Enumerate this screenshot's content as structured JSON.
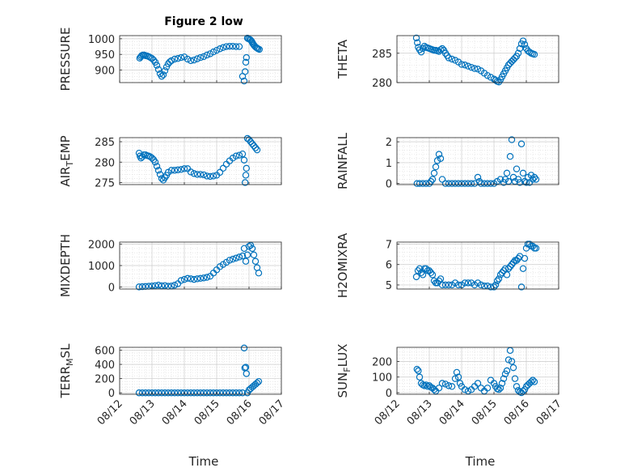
{
  "figure_title": "Figure 2 low",
  "chart_data": [
    {
      "type": "scatter",
      "ylabel": "PRESSURE",
      "ylim": [
        860,
        1010
      ],
      "yticks": [
        900,
        950,
        1000
      ],
      "xlim": [
        0,
        5
      ],
      "xticks": [
        0,
        1,
        2,
        3,
        4,
        5
      ],
      "xticklabels": [
        "08/12",
        "08/13",
        "08/14",
        "08/15",
        "08/16",
        "08/17"
      ],
      "show_xticklabels": false,
      "grid": true,
      "color": "#0072BD",
      "x": [
        0.62,
        0.65,
        0.68,
        0.72,
        0.76,
        0.8,
        0.85,
        0.9,
        0.95,
        1.0,
        1.05,
        1.1,
        1.15,
        1.2,
        1.25,
        1.3,
        1.35,
        1.4,
        1.45,
        1.5,
        1.55,
        1.6,
        1.7,
        1.8,
        1.9,
        2.0,
        2.1,
        2.2,
        2.3,
        2.4,
        2.5,
        2.6,
        2.7,
        2.8,
        2.9,
        3.0,
        3.1,
        3.2,
        3.3,
        3.4,
        3.5,
        3.6,
        3.7,
        3.8,
        3.85,
        3.88,
        3.9,
        3.92,
        3.95,
        3.98,
        4.02,
        4.05,
        4.08,
        4.1,
        4.12,
        4.15,
        4.18,
        4.22,
        4.25,
        4.28,
        4.32
      ],
      "y": [
        938,
        942,
        946,
        948,
        948,
        946,
        945,
        943,
        940,
        937,
        932,
        925,
        915,
        902,
        888,
        880,
        885,
        898,
        910,
        920,
        926,
        930,
        935,
        937,
        940,
        942,
        935,
        930,
        932,
        936,
        940,
        943,
        948,
        952,
        958,
        963,
        968,
        972,
        975,
        976,
        976,
        975,
        975,
        880,
        865,
        895,
        925,
        940,
        1002,
        1000,
        998,
        996,
        992,
        988,
        984,
        980,
        976,
        972,
        970,
        968,
        966
      ]
    },
    {
      "type": "scatter",
      "ylabel": "THETA",
      "ylim": [
        280,
        288
      ],
      "yticks": [
        280,
        285
      ],
      "xlim": [
        0,
        5
      ],
      "xticks": [
        0,
        1,
        2,
        3,
        4,
        5
      ],
      "xticklabels": [
        "08/12",
        "08/13",
        "08/14",
        "08/15",
        "08/16",
        "08/17"
      ],
      "show_xticklabels": false,
      "grid": true,
      "color": "#0072BD",
      "x": [
        0.6,
        0.63,
        0.66,
        0.7,
        0.75,
        0.8,
        0.85,
        0.9,
        0.95,
        1.0,
        1.05,
        1.1,
        1.15,
        1.2,
        1.25,
        1.3,
        1.35,
        1.4,
        1.45,
        1.5,
        1.55,
        1.6,
        1.7,
        1.8,
        1.9,
        2.0,
        2.1,
        2.2,
        2.3,
        2.4,
        2.5,
        2.6,
        2.7,
        2.8,
        2.9,
        3.0,
        3.05,
        3.1,
        3.15,
        3.2,
        3.25,
        3.3,
        3.35,
        3.4,
        3.45,
        3.5,
        3.55,
        3.6,
        3.65,
        3.7,
        3.75,
        3.8,
        3.85,
        3.9,
        3.95,
        4.0,
        4.05,
        4.1,
        4.15,
        4.2,
        4.25
      ],
      "y": [
        287.6,
        286.8,
        286,
        285.6,
        285.2,
        285.8,
        286.2,
        286,
        285.9,
        285.8,
        285.7,
        285.6,
        285.5,
        285.5,
        285.4,
        285.3,
        285.6,
        285.8,
        285.5,
        285,
        284.6,
        284.2,
        284,
        283.8,
        283.5,
        283.1,
        283,
        282.8,
        282.6,
        282.4,
        282.3,
        282,
        281.6,
        281.2,
        280.9,
        280.6,
        280.4,
        280.2,
        280.1,
        280.5,
        281,
        281.5,
        282,
        282.5,
        283,
        283.3,
        283.6,
        283.9,
        284.2,
        284.5,
        285,
        285.8,
        286.6,
        287.1,
        286.5,
        285.8,
        285.4,
        285.2,
        285,
        284.9,
        284.8
      ]
    },
    {
      "type": "scatter",
      "ylabel": "AIR_T_EMP",
      "ylabel_main": "AIR",
      "ylabel_sub": "T",
      "ylabel_rest": "EMP",
      "ylim": [
        274.5,
        286
      ],
      "yticks": [
        275,
        280,
        285
      ],
      "xlim": [
        0,
        5
      ],
      "xticks": [
        0,
        1,
        2,
        3,
        4,
        5
      ],
      "xticklabels": [
        "08/12",
        "08/13",
        "08/14",
        "08/15",
        "08/16",
        "08/17"
      ],
      "show_xticklabels": false,
      "grid": true,
      "color": "#0072BD",
      "x": [
        0.6,
        0.63,
        0.66,
        0.7,
        0.75,
        0.8,
        0.85,
        0.9,
        0.95,
        1.0,
        1.05,
        1.1,
        1.15,
        1.2,
        1.25,
        1.3,
        1.35,
        1.4,
        1.45,
        1.5,
        1.6,
        1.7,
        1.8,
        1.9,
        2.0,
        2.1,
        2.2,
        2.3,
        2.4,
        2.5,
        2.6,
        2.7,
        2.8,
        2.9,
        3.0,
        3.1,
        3.2,
        3.3,
        3.4,
        3.5,
        3.6,
        3.7,
        3.8,
        3.85,
        3.88,
        3.9,
        3.92,
        3.95,
        4.0,
        4.05,
        4.1,
        4.15,
        4.2,
        4.25
      ],
      "y": [
        282.2,
        281.5,
        281,
        281.3,
        281.8,
        281.8,
        281.6,
        281.5,
        281.3,
        281,
        280.6,
        280,
        279,
        278,
        277,
        276,
        275.6,
        276.2,
        276.8,
        277.5,
        278,
        278,
        278.1,
        278.2,
        278.4,
        278.4,
        277.6,
        277.2,
        277,
        277,
        276.9,
        276.6,
        276.5,
        276.6,
        276.8,
        277.5,
        278.5,
        279.5,
        280.3,
        281,
        281.5,
        281.7,
        282,
        280.5,
        275,
        276.8,
        278.5,
        285.8,
        285.5,
        285,
        284.5,
        284,
        283.5,
        283
      ]
    },
    {
      "type": "scatter",
      "ylabel": "RAINFALL",
      "ylim": [
        -0.05,
        2.2
      ],
      "yticks": [
        0,
        1,
        2
      ],
      "xlim": [
        0,
        5
      ],
      "xticks": [
        0,
        1,
        2,
        3,
        4,
        5
      ],
      "xticklabels": [
        "08/12",
        "08/13",
        "08/14",
        "08/15",
        "08/16",
        "08/17"
      ],
      "show_xticklabels": false,
      "grid": true,
      "color": "#0072BD",
      "x": [
        0.62,
        0.7,
        0.8,
        0.9,
        1.0,
        1.05,
        1.1,
        1.15,
        1.2,
        1.25,
        1.3,
        1.35,
        1.4,
        1.5,
        1.6,
        1.7,
        1.8,
        1.9,
        2.0,
        2.1,
        2.2,
        2.3,
        2.4,
        2.5,
        2.55,
        2.6,
        2.7,
        2.8,
        2.9,
        3.0,
        3.1,
        3.2,
        3.3,
        3.35,
        3.4,
        3.45,
        3.5,
        3.55,
        3.6,
        3.65,
        3.7,
        3.75,
        3.8,
        3.85,
        3.9,
        3.95,
        4.0,
        4.05,
        4.1,
        4.15,
        4.2,
        4.25,
        4.3
      ],
      "y": [
        0,
        0,
        0,
        0,
        0,
        0.1,
        0.2,
        0.5,
        0.8,
        1.1,
        1.4,
        1.2,
        0.2,
        0,
        0,
        0,
        0,
        0,
        0,
        0,
        0,
        0,
        0,
        0.3,
        0.1,
        0,
        0,
        0,
        0,
        0,
        0.1,
        0.2,
        0.05,
        0.2,
        0.5,
        0.1,
        1.3,
        2.1,
        0.3,
        0.1,
        0.7,
        0.2,
        0.05,
        1.9,
        0.5,
        0.1,
        0.05,
        0.3,
        0.05,
        0.4,
        0.2,
        0.3,
        0.2
      ]
    },
    {
      "type": "scatter",
      "ylabel": "MIXDEPTH",
      "ylim": [
        -100,
        2100
      ],
      "yticks": [
        0,
        1000,
        2000
      ],
      "xlim": [
        0,
        5
      ],
      "xticks": [
        0,
        1,
        2,
        3,
        4,
        5
      ],
      "xticklabels": [
        "08/12",
        "08/13",
        "08/14",
        "08/15",
        "08/16",
        "08/17"
      ],
      "show_xticklabels": false,
      "grid": true,
      "color": "#0072BD",
      "x": [
        0.6,
        0.7,
        0.8,
        0.9,
        1.0,
        1.1,
        1.2,
        1.3,
        1.4,
        1.5,
        1.6,
        1.7,
        1.8,
        1.9,
        2.0,
        2.1,
        2.2,
        2.3,
        2.4,
        2.5,
        2.6,
        2.7,
        2.8,
        2.9,
        3.0,
        3.1,
        3.2,
        3.3,
        3.4,
        3.5,
        3.6,
        3.7,
        3.8,
        3.85,
        3.9,
        3.95,
        4.0,
        4.05,
        4.1,
        4.15,
        4.2,
        4.25,
        4.3
      ],
      "y": [
        0,
        10,
        20,
        30,
        40,
        60,
        80,
        50,
        60,
        30,
        40,
        80,
        150,
        300,
        350,
        400,
        380,
        350,
        380,
        400,
        420,
        450,
        500,
        650,
        800,
        950,
        1050,
        1150,
        1250,
        1300,
        1350,
        1400,
        1450,
        1800,
        1200,
        1500,
        1900,
        1950,
        1800,
        1500,
        1200,
        900,
        650
      ]
    },
    {
      "type": "scatter",
      "ylabel": "H2OMIXRA",
      "ylim": [
        4.8,
        7.1
      ],
      "yticks": [
        5,
        6,
        7
      ],
      "xlim": [
        0,
        5
      ],
      "xticks": [
        0,
        1,
        2,
        3,
        4,
        5
      ],
      "xticklabels": [
        "08/12",
        "08/13",
        "08/14",
        "08/15",
        "08/16",
        "08/17"
      ],
      "show_xticklabels": false,
      "grid": true,
      "color": "#0072BD",
      "x": [
        0.6,
        0.65,
        0.7,
        0.75,
        0.8,
        0.85,
        0.9,
        0.95,
        1.0,
        1.05,
        1.1,
        1.15,
        1.2,
        1.25,
        1.3,
        1.35,
        1.4,
        1.5,
        1.6,
        1.7,
        1.8,
        1.9,
        2.0,
        2.1,
        2.2,
        2.3,
        2.4,
        2.5,
        2.6,
        2.7,
        2.8,
        2.9,
        3.0,
        3.05,
        3.1,
        3.15,
        3.2,
        3.25,
        3.3,
        3.35,
        3.4,
        3.45,
        3.5,
        3.55,
        3.6,
        3.65,
        3.7,
        3.75,
        3.8,
        3.85,
        3.9,
        3.95,
        4.0,
        4.05,
        4.1,
        4.15,
        4.2,
        4.25,
        4.3
      ],
      "y": [
        5.4,
        5.7,
        5.8,
        5.6,
        5.5,
        5.8,
        5.8,
        5.7,
        5.7,
        5.6,
        5.5,
        5.2,
        5.1,
        5.1,
        5.2,
        5.3,
        5.0,
        5.0,
        5.0,
        5.0,
        5.1,
        5.0,
        5.0,
        5.1,
        5.1,
        5.1,
        5.0,
        5.1,
        5.0,
        4.95,
        4.95,
        4.9,
        4.9,
        5.0,
        5.2,
        5.3,
        5.5,
        5.6,
        5.7,
        5.8,
        5.5,
        5.8,
        5.9,
        6.0,
        6.1,
        6.2,
        6.2,
        6.3,
        6.4,
        4.9,
        5.8,
        6.3,
        6.8,
        7.0,
        7.0,
        6.9,
        6.9,
        6.8,
        6.8
      ]
    },
    {
      "type": "scatter",
      "ylabel": "TERR_M_SL",
      "ylabel_main": "TERR",
      "ylabel_sub": "M",
      "ylabel_rest": "SL",
      "ylim": [
        -20,
        640
      ],
      "yticks": [
        0,
        200,
        400,
        600
      ],
      "xlim": [
        0,
        5
      ],
      "xticks": [
        0,
        1,
        2,
        3,
        4,
        5
      ],
      "xticklabels": [
        "08/12",
        "08/13",
        "08/14",
        "08/15",
        "08/16",
        "08/17"
      ],
      "show_xticklabels": true,
      "grid": true,
      "color": "#0072BD",
      "x": [
        0.6,
        0.7,
        0.8,
        0.9,
        1.0,
        1.1,
        1.2,
        1.3,
        1.4,
        1.5,
        1.6,
        1.7,
        1.8,
        1.9,
        2.0,
        2.1,
        2.2,
        2.3,
        2.4,
        2.5,
        2.6,
        2.7,
        2.8,
        2.9,
        3.0,
        3.1,
        3.2,
        3.3,
        3.4,
        3.5,
        3.6,
        3.7,
        3.8,
        3.85,
        3.87,
        3.9,
        3.92,
        3.95,
        4.0,
        4.05,
        4.1,
        4.15,
        4.2,
        4.25,
        4.3
      ],
      "y": [
        0,
        0,
        0,
        0,
        0,
        0,
        0,
        0,
        0,
        0,
        0,
        0,
        0,
        0,
        0,
        0,
        0,
        0,
        0,
        0,
        0,
        0,
        0,
        0,
        0,
        0,
        0,
        0,
        0,
        0,
        0,
        0,
        0,
        630,
        350,
        360,
        270,
        0,
        40,
        60,
        80,
        100,
        120,
        140,
        160
      ]
    },
    {
      "type": "scatter",
      "ylabel": "SUN_F_LUX",
      "ylabel_main": "SUN",
      "ylabel_sub": "F",
      "ylabel_rest": "LUX",
      "ylim": [
        -10,
        290
      ],
      "yticks": [
        0,
        100,
        200
      ],
      "xlim": [
        0,
        5
      ],
      "xticks": [
        0,
        1,
        2,
        3,
        4,
        5
      ],
      "xticklabels": [
        "08/12",
        "08/13",
        "08/14",
        "08/15",
        "08/16",
        "08/17"
      ],
      "show_xticklabels": true,
      "grid": true,
      "color": "#0072BD",
      "x": [
        0.62,
        0.66,
        0.7,
        0.75,
        0.8,
        0.85,
        0.9,
        0.95,
        1.0,
        1.05,
        1.1,
        1.15,
        1.2,
        1.3,
        1.4,
        1.5,
        1.6,
        1.7,
        1.8,
        1.85,
        1.9,
        1.95,
        2.0,
        2.1,
        2.2,
        2.3,
        2.4,
        2.5,
        2.6,
        2.7,
        2.8,
        2.9,
        3.0,
        3.05,
        3.1,
        3.15,
        3.2,
        3.25,
        3.3,
        3.35,
        3.4,
        3.45,
        3.5,
        3.55,
        3.6,
        3.65,
        3.7,
        3.75,
        3.8,
        3.85,
        3.9,
        3.95,
        4.0,
        4.05,
        4.1,
        4.15,
        4.2,
        4.25
      ],
      "y": [
        150,
        140,
        100,
        60,
        50,
        45,
        50,
        40,
        45,
        35,
        30,
        20,
        10,
        30,
        60,
        55,
        45,
        40,
        90,
        130,
        100,
        60,
        40,
        20,
        10,
        20,
        40,
        60,
        30,
        10,
        30,
        80,
        60,
        40,
        25,
        20,
        30,
        60,
        90,
        120,
        140,
        210,
        270,
        200,
        160,
        90,
        40,
        15,
        5,
        0,
        10,
        20,
        40,
        50,
        60,
        70,
        80,
        70
      ]
    }
  ],
  "xlabel": "Time"
}
